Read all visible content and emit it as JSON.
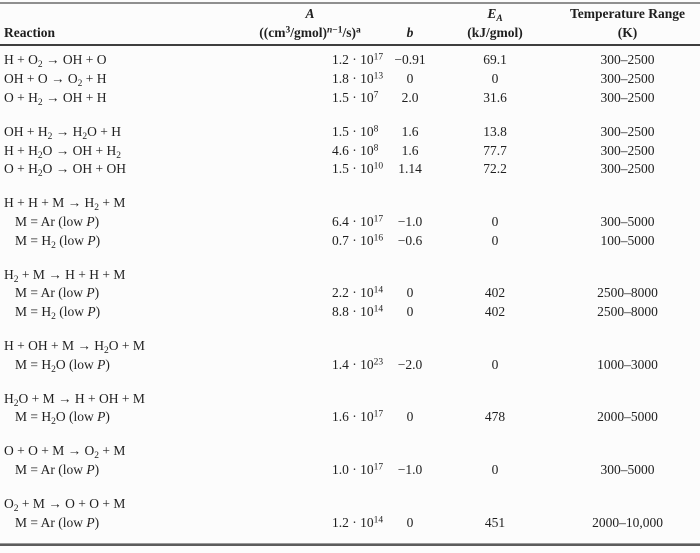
{
  "table": {
    "header": {
      "reaction": "Reaction",
      "A_line1": "*A*",
      "A_line2": "((cm^3^/gmol)^*n*−1^/s)^a^",
      "b": "*b*",
      "EA_line1": "*E*_*A*_",
      "EA_line2": "(kJ/gmol)",
      "temp_line1": "Temperature Range",
      "temp_line2": "(K)"
    },
    "groups": [
      {
        "rows": [
          {
            "reaction": "H + O_2_ → OH + O",
            "indent": false,
            "A": "1.2 · 10^17^",
            "b": "−0.91",
            "EA": "69.1",
            "temp": "300–2500"
          },
          {
            "reaction": "OH + O → O_2_ + H",
            "indent": false,
            "A": "1.8 · 10^13^",
            "b": "0",
            "EA": "0",
            "temp": "300–2500"
          },
          {
            "reaction": "O + H_2_ → OH + H",
            "indent": false,
            "A": "1.5 · 10^7^",
            "b": "2.0",
            "EA": "31.6",
            "temp": "300–2500"
          }
        ]
      },
      {
        "rows": [
          {
            "reaction": "OH + H_2_ → H_2_O + H",
            "indent": false,
            "A": "1.5 · 10^8^",
            "b": "1.6",
            "EA": "13.8",
            "temp": "300–2500"
          },
          {
            "reaction": "H + H_2_O → OH + H_2_",
            "indent": false,
            "A": "4.6 · 10^8^",
            "b": "1.6",
            "EA": "77.7",
            "temp": "300–2500"
          },
          {
            "reaction": "O + H_2_O → OH + OH",
            "indent": false,
            "A": "1.5 · 10^10^",
            "b": "1.14",
            "EA": "72.2",
            "temp": "300–2500"
          }
        ]
      },
      {
        "rows": [
          {
            "reaction": "H + H + M → H_2_ + M",
            "indent": false,
            "A": "",
            "b": "",
            "EA": "",
            "temp": ""
          },
          {
            "reaction": "M = Ar (low *P*)",
            "indent": true,
            "A": "6.4 · 10^17^",
            "b": "−1.0",
            "EA": "0",
            "temp": "300–5000"
          },
          {
            "reaction": "M = H_2_ (low *P*)",
            "indent": true,
            "A": "0.7 · 10^16^",
            "b": "−0.6",
            "EA": "0",
            "temp": "100–5000"
          }
        ]
      },
      {
        "rows": [
          {
            "reaction": "H_2_ + M → H + H + M",
            "indent": false,
            "A": "",
            "b": "",
            "EA": "",
            "temp": ""
          },
          {
            "reaction": "M = Ar (low *P*)",
            "indent": true,
            "A": "2.2 · 10^14^",
            "b": "0",
            "EA": "402",
            "temp": "2500–8000"
          },
          {
            "reaction": "M = H_2_ (low *P*)",
            "indent": true,
            "A": "8.8 · 10^14^",
            "b": "0",
            "EA": "402",
            "temp": "2500–8000"
          }
        ]
      },
      {
        "rows": [
          {
            "reaction": "H + OH + M → H_2_O + M",
            "indent": false,
            "A": "",
            "b": "",
            "EA": "",
            "temp": ""
          },
          {
            "reaction": "M = H_2_O (low *P*)",
            "indent": true,
            "A": "1.4 · 10^23^",
            "b": "−2.0",
            "EA": "0",
            "temp": "1000–3000"
          }
        ]
      },
      {
        "rows": [
          {
            "reaction": "H_2_O + M → H + OH + M",
            "indent": false,
            "A": "",
            "b": "",
            "EA": "",
            "temp": ""
          },
          {
            "reaction": "M = H_2_O (low *P*)",
            "indent": true,
            "A": "1.6 · 10^17^",
            "b": "0",
            "EA": "478",
            "temp": "2000–5000"
          }
        ]
      },
      {
        "rows": [
          {
            "reaction": "O + O + M → O_2_ + M",
            "indent": false,
            "A": "",
            "b": "",
            "EA": "",
            "temp": ""
          },
          {
            "reaction": "M = Ar (low *P*)",
            "indent": true,
            "A": "1.0 · 10^17^",
            "b": "−1.0",
            "EA": "0",
            "temp": "300–5000"
          }
        ]
      },
      {
        "rows": [
          {
            "reaction": "O_2_ + M → O + O + M",
            "indent": false,
            "A": "",
            "b": "",
            "EA": "",
            "temp": ""
          },
          {
            "reaction": "M = Ar (low *P*)",
            "indent": true,
            "A": "1.2 · 10^14^",
            "b": "0",
            "EA": "451",
            "temp": "2000–10,000"
          }
        ]
      }
    ]
  }
}
